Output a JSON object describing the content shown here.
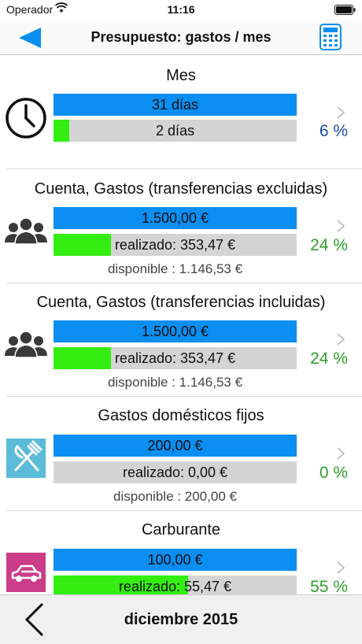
{
  "status_bar": {
    "carrier": "Operador",
    "time": "11:16"
  },
  "nav": {
    "title": "Presupuesto: gastos / mes"
  },
  "budgets": [
    {
      "title": "Mes",
      "icon": "clock-icon",
      "total": "31 días",
      "done": "2 días",
      "progress": 0.065,
      "percent": "6 %",
      "percent_color": "#1a4fa0"
    },
    {
      "title": "Cuenta, Gastos (transferencias excluidas)",
      "icon": "people-icon",
      "total": "1.500,00 €",
      "done": "realizado: 353,47 €",
      "progress": 0.236,
      "available": "disponible : 1.146,53 €",
      "percent": "24 %",
      "percent_color": "#2e9e2e"
    },
    {
      "title": "Cuenta, Gastos (transferencias incluidas)",
      "icon": "people-icon",
      "total": "1.500,00 €",
      "done": "realizado: 353,47 €",
      "progress": 0.236,
      "available": "disponible : 1.146,53 €",
      "percent": "24 %",
      "percent_color": "#2e9e2e"
    },
    {
      "title": "Gastos domésticos fijos",
      "icon": "fork-knife-icon",
      "total": "200,00 €",
      "done": "realizado: 0,00 €",
      "progress": 0,
      "available": "disponible : 200,00 €",
      "percent": "0 %",
      "percent_color": "#2e9e2e"
    },
    {
      "title": "Carburante",
      "icon": "car-icon",
      "total": "100,00 €",
      "done": "realizado: 55,47 €",
      "progress": 0.555,
      "percent": "55 %",
      "percent_color": "#2e9e2e"
    }
  ],
  "footer": {
    "month": "diciembre 2015"
  },
  "colors": {
    "accent": "#0a8ef2",
    "fill": "#33ee10",
    "track": "#d4d4d4"
  }
}
